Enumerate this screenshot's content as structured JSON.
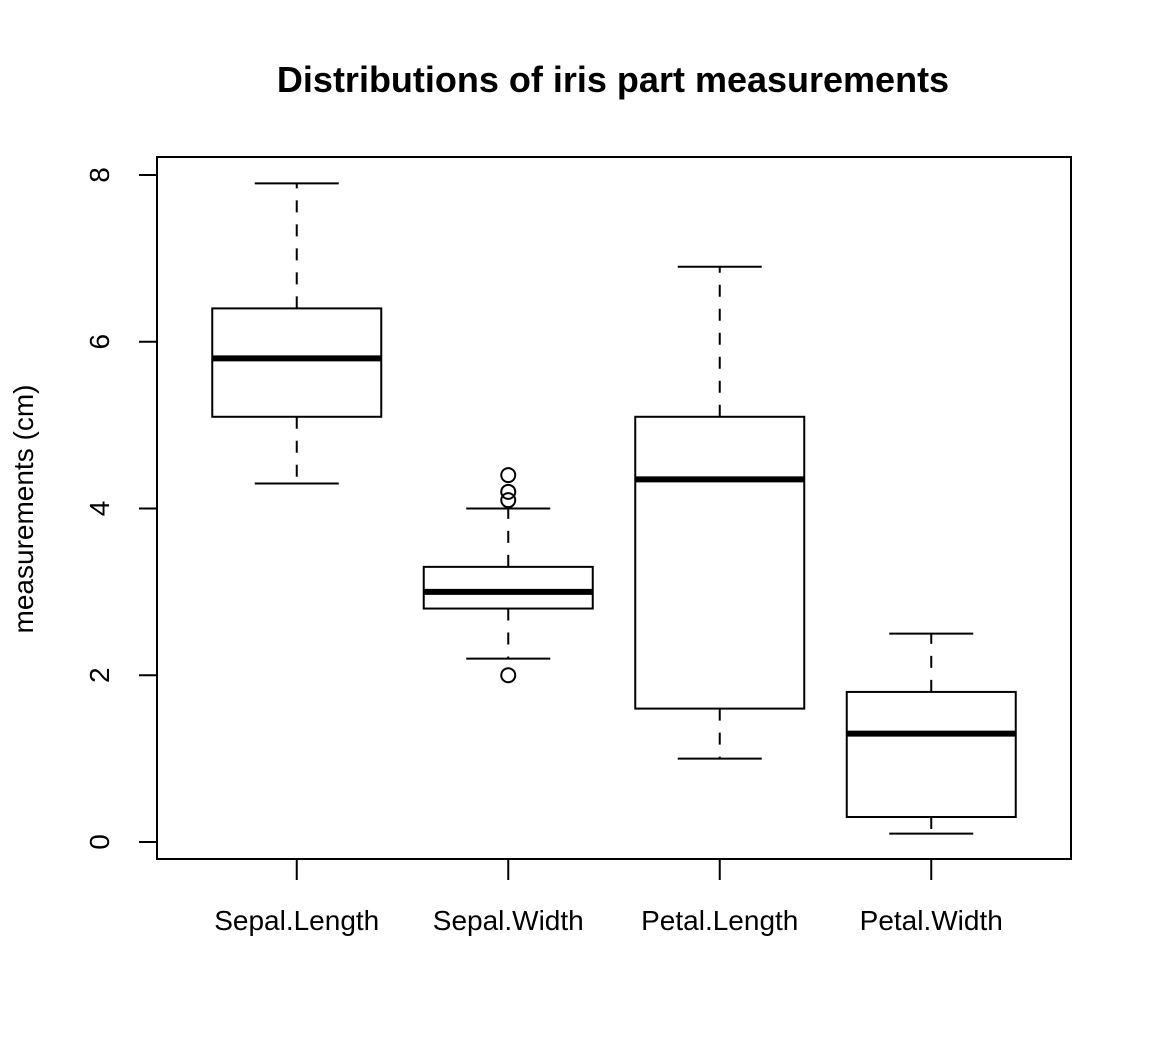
{
  "chart_data": {
    "type": "boxplot",
    "title": "Distributions of iris part measurements",
    "xlabel": "",
    "ylabel": "measurements (cm)",
    "ylim": [
      0,
      8
    ],
    "yticks": [
      0,
      2,
      4,
      6,
      8
    ],
    "grid": false,
    "categories": [
      "Sepal.Length",
      "Sepal.Width",
      "Petal.Length",
      "Petal.Width"
    ],
    "boxes": [
      {
        "category": "Sepal.Length",
        "whisker_low": 4.3,
        "q1": 5.1,
        "median": 5.8,
        "q3": 6.4,
        "whisker_high": 7.9,
        "outliers": []
      },
      {
        "category": "Sepal.Width",
        "whisker_low": 2.2,
        "q1": 2.8,
        "median": 3.0,
        "q3": 3.3,
        "whisker_high": 4.0,
        "outliers": [
          4.4,
          4.2,
          4.1,
          2.0
        ]
      },
      {
        "category": "Petal.Length",
        "whisker_low": 1.0,
        "q1": 1.6,
        "median": 4.35,
        "q3": 5.1,
        "whisker_high": 6.9,
        "outliers": []
      },
      {
        "category": "Petal.Width",
        "whisker_low": 0.1,
        "q1": 0.3,
        "median": 1.3,
        "q3": 1.8,
        "whisker_high": 2.5,
        "outliers": []
      }
    ]
  }
}
